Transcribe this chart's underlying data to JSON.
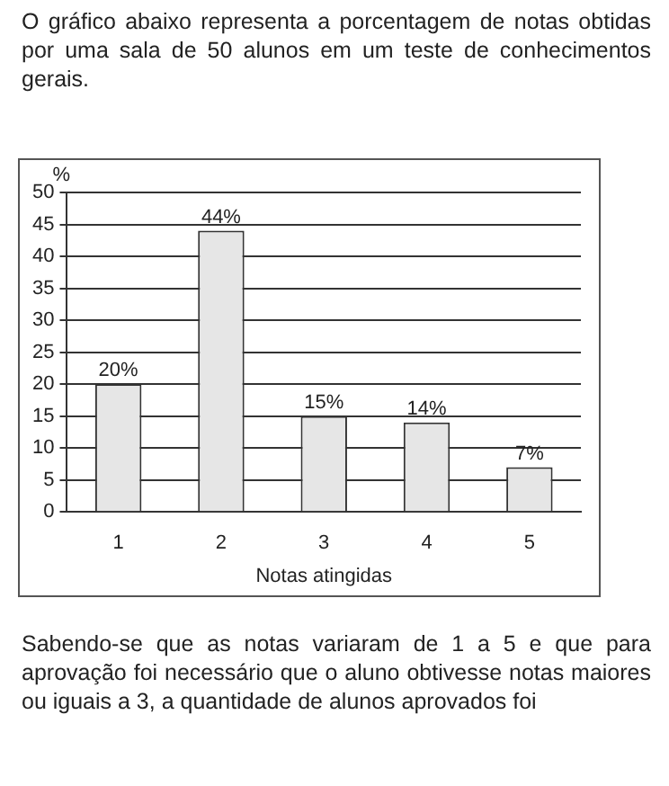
{
  "chart_data": {
    "type": "bar",
    "title": "O gráfico abaixo representa a porcentagem de notas obtidas por uma sala de 50 alunos em um teste de conhecimentos gerais.",
    "categories": [
      "1",
      "2",
      "3",
      "4",
      "5"
    ],
    "values": [
      20,
      44,
      15,
      14,
      7
    ],
    "value_labels": [
      "20%",
      "44%",
      "15%",
      "14%",
      "7%"
    ],
    "color": "#e6e6e6",
    "ylabel": "%",
    "xlabel": "Notas atingidas",
    "ylim": [
      0,
      50
    ],
    "yticks": [
      0,
      5,
      10,
      15,
      20,
      25,
      30,
      35,
      40,
      45,
      50
    ],
    "grid": "y",
    "annotations": [
      "Sabendo-se que as notas variaram de 1 a 5 e que para aprovação foi necessário que o aluno obtivesse notas maiores ou iguais a 3, a quantidade de alunos aprovados foi"
    ]
  }
}
